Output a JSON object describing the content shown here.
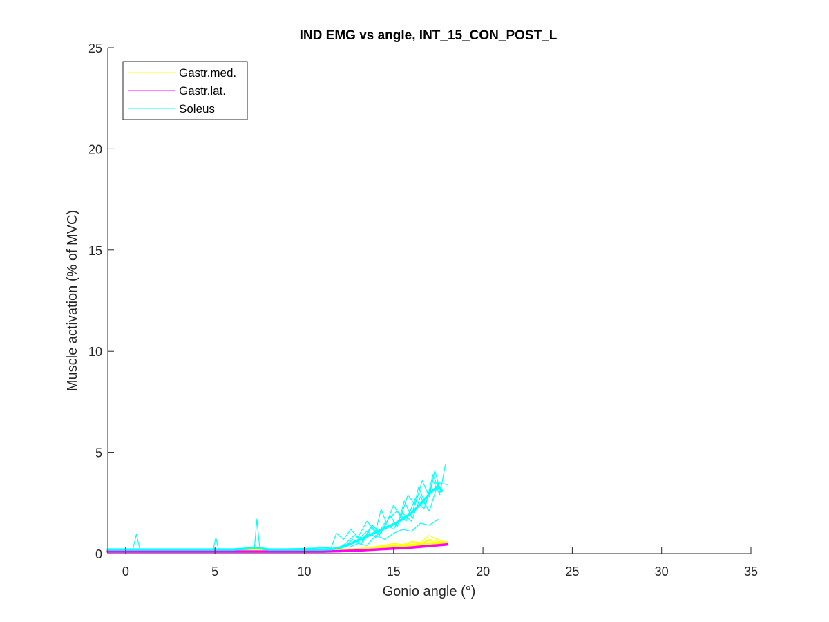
{
  "chart_data": {
    "type": "line",
    "title": "IND EMG vs angle, INT_15_CON_POST_L",
    "xlabel": "Gonio angle (°)",
    "ylabel": "Muscle activation (% of MVC)",
    "xlim": [
      -1,
      35
    ],
    "ylim": [
      0,
      25
    ],
    "xticks": [
      0,
      5,
      10,
      15,
      20,
      25,
      30,
      35
    ],
    "yticks": [
      0,
      5,
      10,
      15,
      20,
      25
    ],
    "xtick_labels": [
      "0",
      "5",
      "10",
      "15",
      "20",
      "25",
      "30",
      "35"
    ],
    "ytick_labels": [
      "0",
      "5",
      "10",
      "15",
      "20",
      "25"
    ],
    "grid": false,
    "legend_position": "top-left",
    "legend": [
      "Gastr.med.",
      "Gastr.lat.",
      "Soleus"
    ],
    "colors": {
      "gastr_med": "#ffff00",
      "gastr_lat": "#ff00ff",
      "soleus": "#00ffff",
      "axis": "#262626"
    },
    "series": [
      {
        "name": "Gastr.med.",
        "color": "#ffff00",
        "mean": {
          "x": [
            -1,
            0,
            2,
            4,
            6,
            8,
            10,
            11,
            12,
            13,
            14,
            15,
            16,
            17,
            18
          ],
          "y": [
            0.15,
            0.15,
            0.15,
            0.15,
            0.15,
            0.15,
            0.15,
            0.15,
            0.18,
            0.22,
            0.28,
            0.35,
            0.42,
            0.5,
            0.55
          ]
        },
        "trials": [
          {
            "x": [
              12,
              13,
              14,
              14.5,
              15,
              15.5,
              16,
              16.5,
              17,
              17.5,
              18
            ],
            "y": [
              0.2,
              0.25,
              0.3,
              0.4,
              0.45,
              0.4,
              0.55,
              0.5,
              0.7,
              0.6,
              0.55
            ]
          },
          {
            "x": [
              12,
              13,
              14,
              15,
              15.5,
              16,
              16.5,
              17,
              17.3,
              17.8
            ],
            "y": [
              0.18,
              0.22,
              0.35,
              0.5,
              0.45,
              0.6,
              0.55,
              0.9,
              0.75,
              0.6
            ]
          },
          {
            "x": [
              13,
              14,
              15,
              16,
              16.5,
              17,
              17.5
            ],
            "y": [
              0.25,
              0.3,
              0.4,
              0.45,
              0.5,
              0.65,
              0.5
            ]
          }
        ]
      },
      {
        "name": "Gastr.lat.",
        "color": "#ff00ff",
        "mean": {
          "x": [
            -1,
            0,
            2,
            4,
            6,
            8,
            10,
            11,
            12,
            13,
            14,
            15,
            16,
            17,
            18
          ],
          "y": [
            0.1,
            0.1,
            0.1,
            0.1,
            0.1,
            0.1,
            0.1,
            0.1,
            0.12,
            0.15,
            0.2,
            0.25,
            0.3,
            0.38,
            0.45
          ]
        },
        "trials": [
          {
            "x": [
              12,
              13,
              14,
              15,
              15.5,
              16,
              16.5,
              17,
              17.5,
              18
            ],
            "y": [
              0.12,
              0.15,
              0.22,
              0.3,
              0.28,
              0.35,
              0.4,
              0.42,
              0.48,
              0.5
            ]
          },
          {
            "x": [
              12,
              13,
              14,
              15,
              16,
              16.5,
              17,
              17.5
            ],
            "y": [
              0.1,
              0.14,
              0.18,
              0.22,
              0.3,
              0.35,
              0.38,
              0.42
            ]
          },
          {
            "x": [
              13,
              14,
              15,
              16,
              17,
              17.8
            ],
            "y": [
              0.15,
              0.2,
              0.28,
              0.32,
              0.45,
              0.4
            ]
          }
        ]
      },
      {
        "name": "Soleus",
        "color": "#00ffff",
        "mean": {
          "x": [
            -1,
            0,
            2,
            4,
            6,
            7.4,
            8,
            10,
            11,
            11.5,
            12,
            12.5,
            13,
            13.5,
            14,
            14.5,
            15,
            15.5,
            16,
            16.5,
            17,
            17.5,
            17.7
          ],
          "y": [
            0.2,
            0.2,
            0.2,
            0.2,
            0.2,
            0.28,
            0.2,
            0.2,
            0.2,
            0.22,
            0.3,
            0.45,
            0.65,
            0.85,
            1.05,
            1.25,
            1.45,
            1.7,
            2.0,
            2.45,
            2.95,
            3.35,
            3.1
          ]
        },
        "trials": [
          {
            "x": [
              -1,
              0.4,
              0.6,
              0.8,
              1,
              4.9,
              5.05,
              5.2,
              7.2,
              7.35,
              7.5,
              7.65,
              11.5,
              11.8,
              12.2,
              12.6,
              13,
              13.5,
              14,
              14.3,
              14.6,
              15,
              15.4,
              15.8,
              16.2,
              16.6,
              17,
              17.3,
              17.6
            ],
            "y": [
              0.2,
              0.2,
              0.95,
              0.2,
              0.2,
              0.2,
              0.8,
              0.2,
              0.2,
              1.7,
              0.3,
              0.2,
              0.3,
              1.0,
              0.7,
              1.2,
              0.8,
              1.6,
              1.1,
              2.2,
              1.5,
              2.4,
              1.8,
              2.9,
              2.4,
              3.6,
              2.8,
              4.1,
              3.2
            ]
          },
          {
            "x": [
              11.8,
              12.3,
              12.8,
              13.3,
              13.8,
              14.3,
              14.8,
              15.2,
              15.6,
              16,
              16.4,
              16.8,
              17.2,
              17.6,
              17.9
            ],
            "y": [
              0.2,
              0.5,
              0.9,
              0.6,
              1.4,
              1.0,
              1.9,
              1.3,
              2.6,
              1.8,
              3.3,
              2.4,
              3.9,
              3.0,
              4.4
            ]
          },
          {
            "x": [
              12,
              12.5,
              13,
              13.5,
              14,
              14.5,
              15,
              15.5,
              16,
              16.5,
              17,
              17.5,
              18
            ],
            "y": [
              0.25,
              0.4,
              0.7,
              1.1,
              0.8,
              1.5,
              1.2,
              2.0,
              1.6,
              2.8,
              2.1,
              3.5,
              3.4
            ]
          },
          {
            "x": [
              12.5,
              13,
              13.5,
              14,
              14.5,
              15,
              15.5,
              16,
              16.5,
              17,
              17.5
            ],
            "y": [
              0.3,
              0.5,
              0.4,
              0.9,
              0.7,
              1.0,
              1.2,
              1.1,
              1.5,
              1.4,
              1.7
            ]
          },
          {
            "x": [
              12.2,
              12.7,
              13.2,
              13.7,
              14.2,
              14.7,
              15.2,
              15.7,
              16.2,
              16.7,
              17.2,
              17.6
            ],
            "y": [
              0.3,
              0.7,
              0.5,
              1.3,
              0.9,
              1.7,
              2.1,
              1.6,
              2.7,
              2.2,
              3.6,
              2.9
            ]
          }
        ]
      }
    ]
  }
}
